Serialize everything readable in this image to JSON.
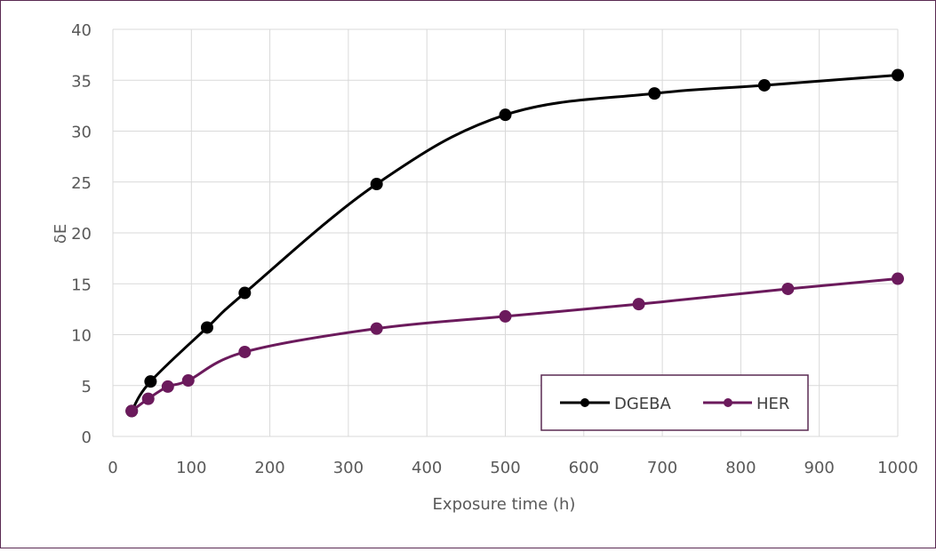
{
  "chart_data": {
    "type": "line",
    "title": "",
    "xlabel": "Exposure time (h)",
    "ylabel": "δE",
    "xlim": [
      0,
      1000
    ],
    "ylim": [
      0,
      40
    ],
    "xticks": [
      0,
      100,
      200,
      300,
      400,
      500,
      600,
      700,
      800,
      900,
      1000
    ],
    "yticks": [
      0,
      5,
      10,
      15,
      20,
      25,
      30,
      35,
      40
    ],
    "grid": true,
    "legend_position": "bottom-right",
    "series": [
      {
        "name": "DGEBA",
        "color": "#000000",
        "x": [
          24,
          48,
          120,
          168,
          336,
          500,
          690,
          830,
          1000
        ],
        "y": [
          2.5,
          5.4,
          10.7,
          14.1,
          24.8,
          31.6,
          33.7,
          34.5,
          35.5
        ]
      },
      {
        "name": "HER",
        "color": "#6b1a5c",
        "x": [
          24,
          45,
          70,
          96,
          168,
          336,
          500,
          670,
          860,
          1000
        ],
        "y": [
          2.5,
          3.7,
          4.9,
          5.5,
          8.3,
          10.6,
          11.8,
          13.0,
          14.5,
          15.5
        ]
      }
    ]
  }
}
